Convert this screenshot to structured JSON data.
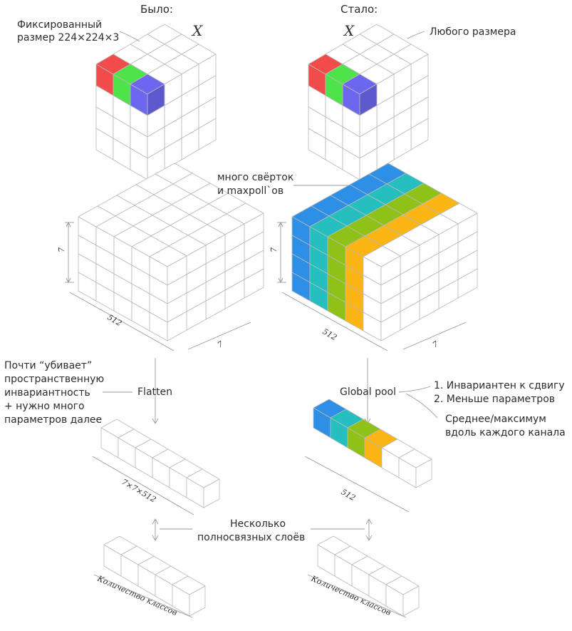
{
  "headers": {
    "before": "Было:",
    "after": "Стало:"
  },
  "input_label": "X",
  "fixed_size_note": [
    "Фиксированный",
    "размер 224×224×3"
  ],
  "any_size_note": "Любого размера",
  "conv_note": [
    "много свёрток",
    "и maxpoll`ов"
  ],
  "dims": {
    "h": "7",
    "w": "7",
    "c": "512",
    "flat": "7×7×512",
    "pooled": "512",
    "classes": "Количество классов"
  },
  "flatten": {
    "label": "Flatten",
    "note": [
      "Почти “убивает”",
      "пространственную",
      "инвариантность",
      "+ нужно много",
      "параметров далее"
    ]
  },
  "global_pool": {
    "label": "Global pool",
    "benefits": [
      "1. Инвариантен к сдвигу",
      "2. Меньше параметров"
    ],
    "note": [
      "Среднее/максимум",
      "вдоль каждого канала"
    ]
  },
  "fc_note": [
    "Несколько",
    "полносвязных слоёв"
  ],
  "colors": {
    "red": "#f24b4b",
    "green": "#4ee34b",
    "blue_px": "#6d67f0",
    "ch1": "#2e8fe6",
    "ch2": "#26bfc0",
    "ch3": "#8fc219",
    "ch4": "#fbb514",
    "line": "#9a9a9a"
  }
}
